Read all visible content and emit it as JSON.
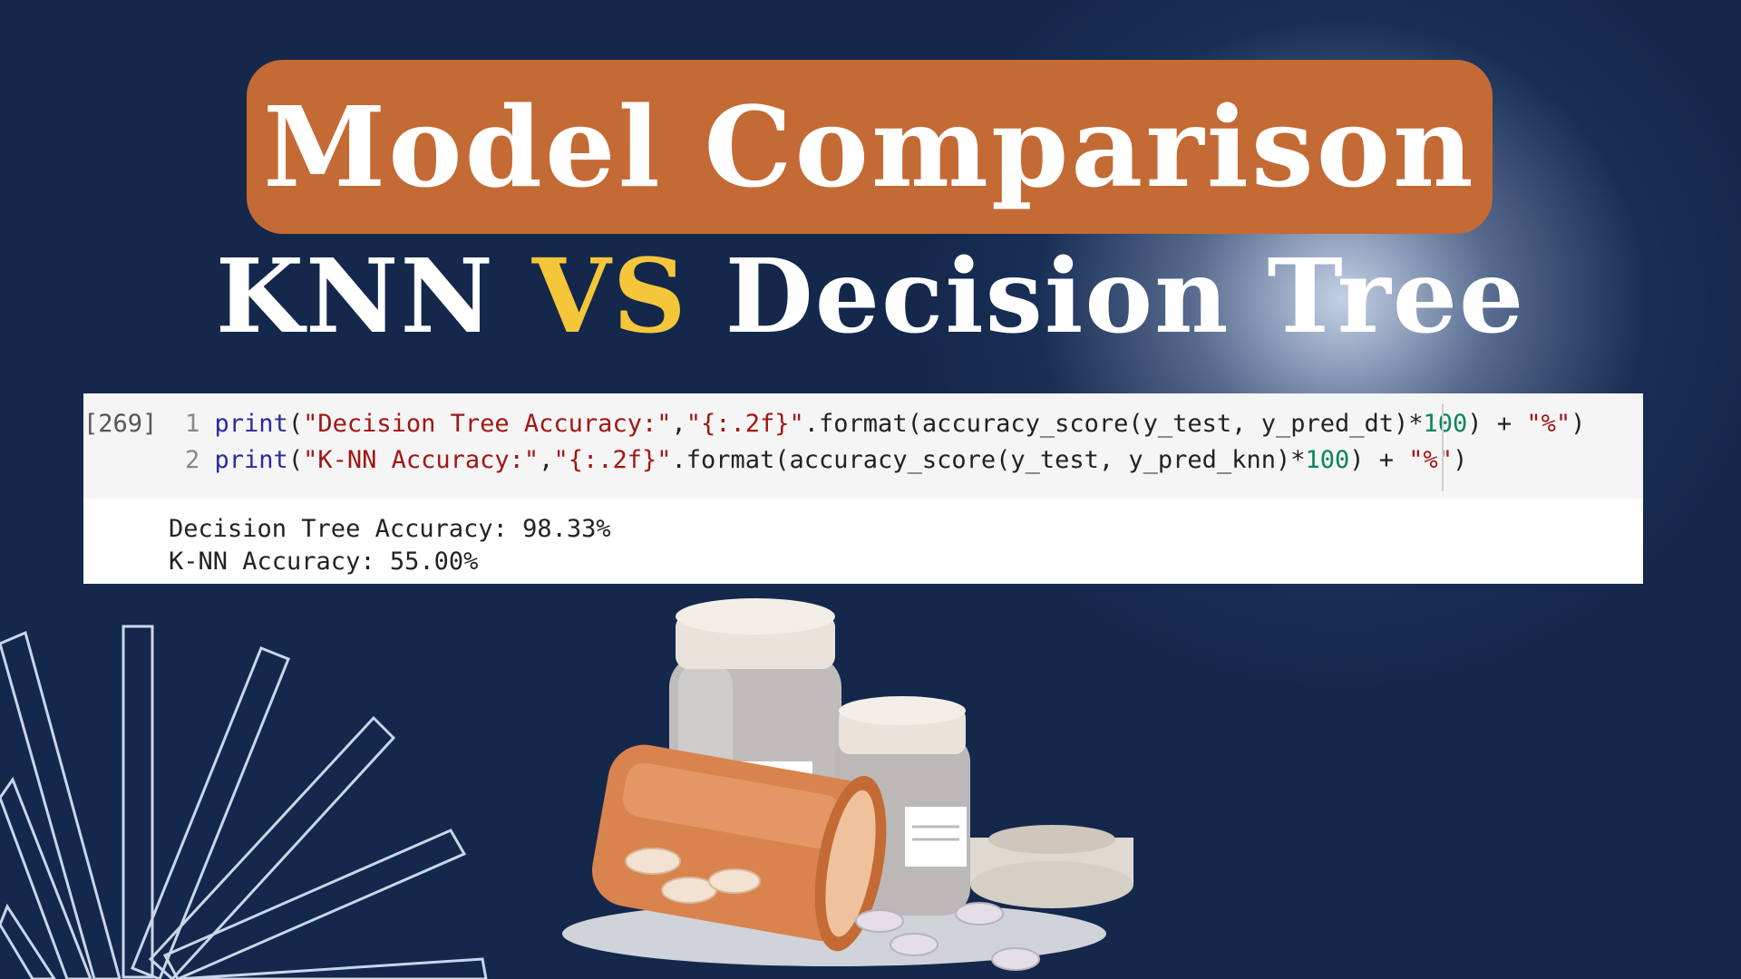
{
  "title": "Model Comparison",
  "subtitle": {
    "part1": "KNN",
    "vs": "VS",
    "part2": "Decision Tree"
  },
  "code_cell": {
    "execution_count": "[269]",
    "lines": [
      {
        "number": "1",
        "func": "print",
        "open": "(",
        "str1": "\"Decision Tree Accuracy:\"",
        "sep": ",",
        "str2": "\"{:.2f}\"",
        "call": ".format(accuracy_score(y_test, y_pred_dt)*",
        "num": "100",
        "tail": ") + ",
        "str3": "\"%\"",
        "close": ")"
      },
      {
        "number": "2",
        "func": "print",
        "open": "(",
        "str1": "\"K-NN Accuracy:\"",
        "sep": ",",
        "str2": "\"{:.2f}\"",
        "call": ".format(accuracy_score(y_test, y_pred_knn)*",
        "num": "100",
        "tail": ") + ",
        "str3": "\"%\"",
        "close": ")"
      }
    ],
    "output": [
      "Decision Tree Accuracy: 98.33%",
      "K-NN Accuracy: 55.00%"
    ]
  },
  "colors": {
    "background": "#14284c",
    "title_box": "#c46a35",
    "vs_accent": "#f5c63a",
    "ray_stroke": "#c9d6ea"
  },
  "decor": {
    "illustration": "pill-bottles-icon",
    "rays": "sunburst-rays-icon"
  }
}
